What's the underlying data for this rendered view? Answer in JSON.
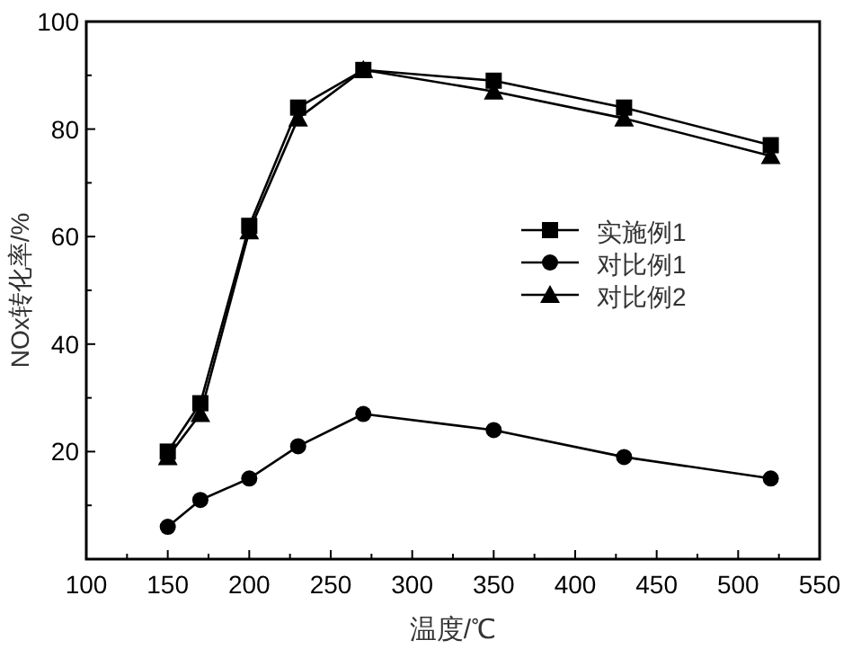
{
  "chart_data": {
    "type": "line",
    "xlabel": "温度/℃",
    "ylabel": "NOx转化率/%",
    "x": [
      150,
      170,
      200,
      230,
      270,
      350,
      430,
      520
    ],
    "series": [
      {
        "name": "实施例1",
        "color": "#000000",
        "marker": "square",
        "values": [
          20,
          29,
          62,
          84,
          91,
          89,
          84,
          77
        ]
      },
      {
        "name": "对比例1",
        "color": "#000000",
        "marker": "circle",
        "values": [
          6,
          11,
          15,
          21,
          27,
          24,
          19,
          15
        ]
      },
      {
        "name": "对比例2",
        "color": "#000000",
        "marker": "triangle",
        "values": [
          19,
          27,
          61,
          82,
          91,
          87,
          82,
          75
        ]
      }
    ],
    "xlim": [
      100,
      550
    ],
    "xticks": [
      100,
      150,
      200,
      250,
      300,
      350,
      400,
      450,
      500,
      550
    ],
    "ylim": [
      0,
      100
    ],
    "yticks": [
      {
        "value": 0,
        "label": null
      },
      20,
      40,
      60,
      80,
      100
    ],
    "grid": false,
    "legend": "right",
    "line_style": "solid"
  }
}
